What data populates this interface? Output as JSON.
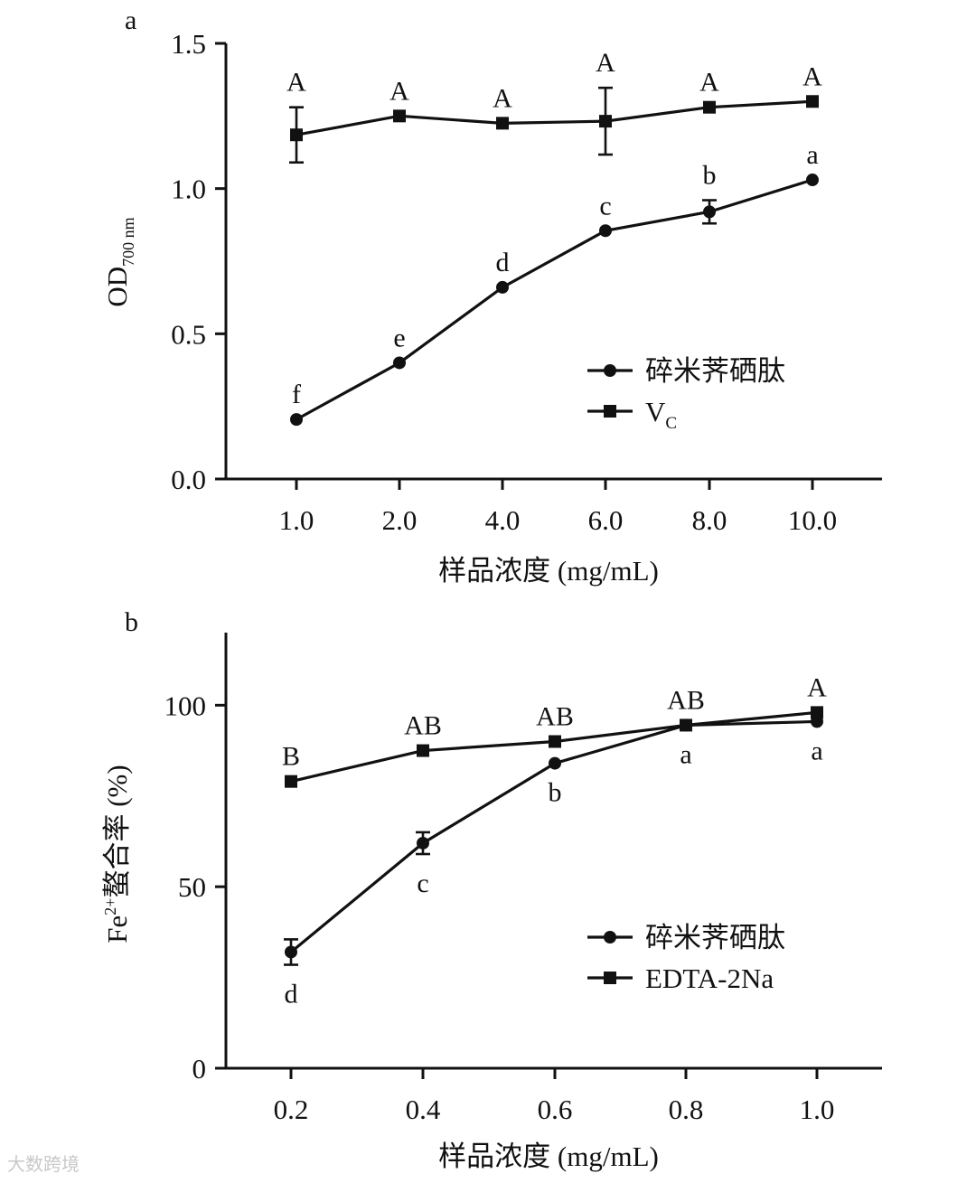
{
  "watermark": "大数跨境",
  "chart_data": [
    {
      "panel_label": "a",
      "type": "line",
      "categories": [
        "1.0",
        "2.0",
        "4.0",
        "6.0",
        "8.0",
        "10.0"
      ],
      "xlabel": "样品浓度 (mg/mL)",
      "ylabel_main": "OD",
      "ylabel_sub": "700 nm",
      "ylim": [
        0,
        1.5
      ],
      "yticks": [
        0.0,
        0.5,
        1.0,
        1.5
      ],
      "ytick_labels": [
        "0.0",
        "0.5",
        "1.0",
        "1.5"
      ],
      "grid": false,
      "legend_position": "lower-right",
      "series": [
        {
          "name": "碎米荠硒肽",
          "legend_main": "碎米荠硒肽",
          "legend_sub": "",
          "marker": "circle",
          "values": [
            0.205,
            0.4,
            0.66,
            0.855,
            0.92,
            1.03
          ],
          "errors": [
            0.0,
            0.0,
            0.0,
            0.0,
            0.04,
            0.0
          ],
          "letters": [
            "f",
            "e",
            "d",
            "c",
            "b",
            "a"
          ],
          "letter_side": "above"
        },
        {
          "name": "VC",
          "legend_main": "V",
          "legend_sub": "C",
          "marker": "square",
          "values": [
            1.185,
            1.25,
            1.225,
            1.232,
            1.28,
            1.3
          ],
          "errors": [
            0.095,
            0.0,
            0.0,
            0.115,
            0.0,
            0.0
          ],
          "letters": [
            "A",
            "A",
            "A",
            "A",
            "A",
            "A"
          ],
          "letter_side": "above"
        }
      ]
    },
    {
      "panel_label": "b",
      "type": "line",
      "categories": [
        "0.2",
        "0.4",
        "0.6",
        "0.8",
        "1.0"
      ],
      "xlabel": "样品浓度 (mg/mL)",
      "ylabel_main": "Fe",
      "ylabel_sup": "2+",
      "ylabel_rest": "螯合率 (%)",
      "ylim": [
        0,
        120
      ],
      "yticks": [
        0,
        50,
        100
      ],
      "ytick_labels": [
        "0",
        "50",
        "100"
      ],
      "grid": false,
      "legend_position": "lower-right",
      "series": [
        {
          "name": "碎米荠硒肽",
          "legend_main": "碎米荠硒肽",
          "legend_sub": "",
          "marker": "circle",
          "values": [
            32,
            62,
            84,
            94.5,
            95.5
          ],
          "errors": [
            3.5,
            3.0,
            0.0,
            0.0,
            0.0
          ],
          "letters": [
            "d",
            "c",
            "b",
            "a",
            "a"
          ],
          "letter_side": "below"
        },
        {
          "name": "EDTA-2Na",
          "legend_main": "EDTA-2Na",
          "legend_sub": "",
          "marker": "square",
          "values": [
            79,
            87.5,
            90,
            94.5,
            98
          ],
          "errors": [
            0.0,
            0.0,
            0.0,
            0.0,
            0.0
          ],
          "letters": [
            "B",
            "AB",
            "AB",
            "AB",
            "A"
          ],
          "letter_side": "above"
        }
      ]
    }
  ]
}
